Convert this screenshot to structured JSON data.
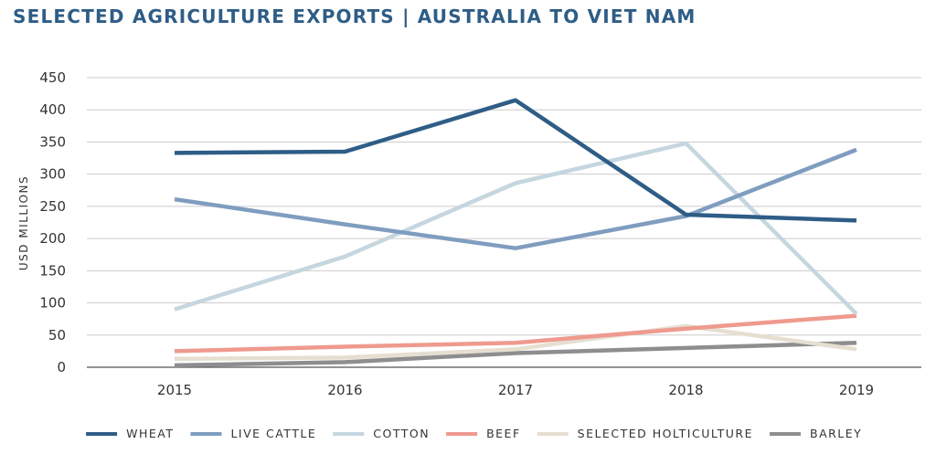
{
  "colors": {
    "title": "#2e5d86",
    "grid": "#cccccc",
    "axis": "#555555",
    "text": "#333333"
  },
  "chart_data": {
    "type": "line",
    "title": "SELECTED AGRICULTURE EXPORTS | AUSTRALIA TO VIET NAM",
    "xlabel": "",
    "ylabel": "USD MILLIONS",
    "ylim": [
      0,
      450
    ],
    "yticks": [
      0,
      50,
      100,
      150,
      200,
      250,
      300,
      350,
      400,
      450
    ],
    "categories": [
      "2015",
      "2016",
      "2017",
      "2018",
      "2019"
    ],
    "grid": "horizontal",
    "legend_position": "bottom",
    "series": [
      {
        "name": "WHEAT",
        "color": "#2e5d86",
        "values": [
          333,
          335,
          415,
          237,
          228
        ]
      },
      {
        "name": "LIVE CATTLE",
        "color": "#7f9dbf",
        "values": [
          261,
          222,
          185,
          235,
          338
        ]
      },
      {
        "name": "COTTON",
        "color": "#c5d6df",
        "values": [
          90,
          172,
          286,
          348,
          83
        ]
      },
      {
        "name": "BEEF",
        "color": "#ef9a8e",
        "values": [
          25,
          32,
          38,
          60,
          80
        ]
      },
      {
        "name": "SELECTED HOLTICULTURE",
        "color": "#e6dfd1",
        "values": [
          13,
          15,
          28,
          64,
          28
        ]
      },
      {
        "name": "BARLEY",
        "color": "#8e8e90",
        "values": [
          3,
          8,
          22,
          30,
          38
        ]
      }
    ]
  }
}
